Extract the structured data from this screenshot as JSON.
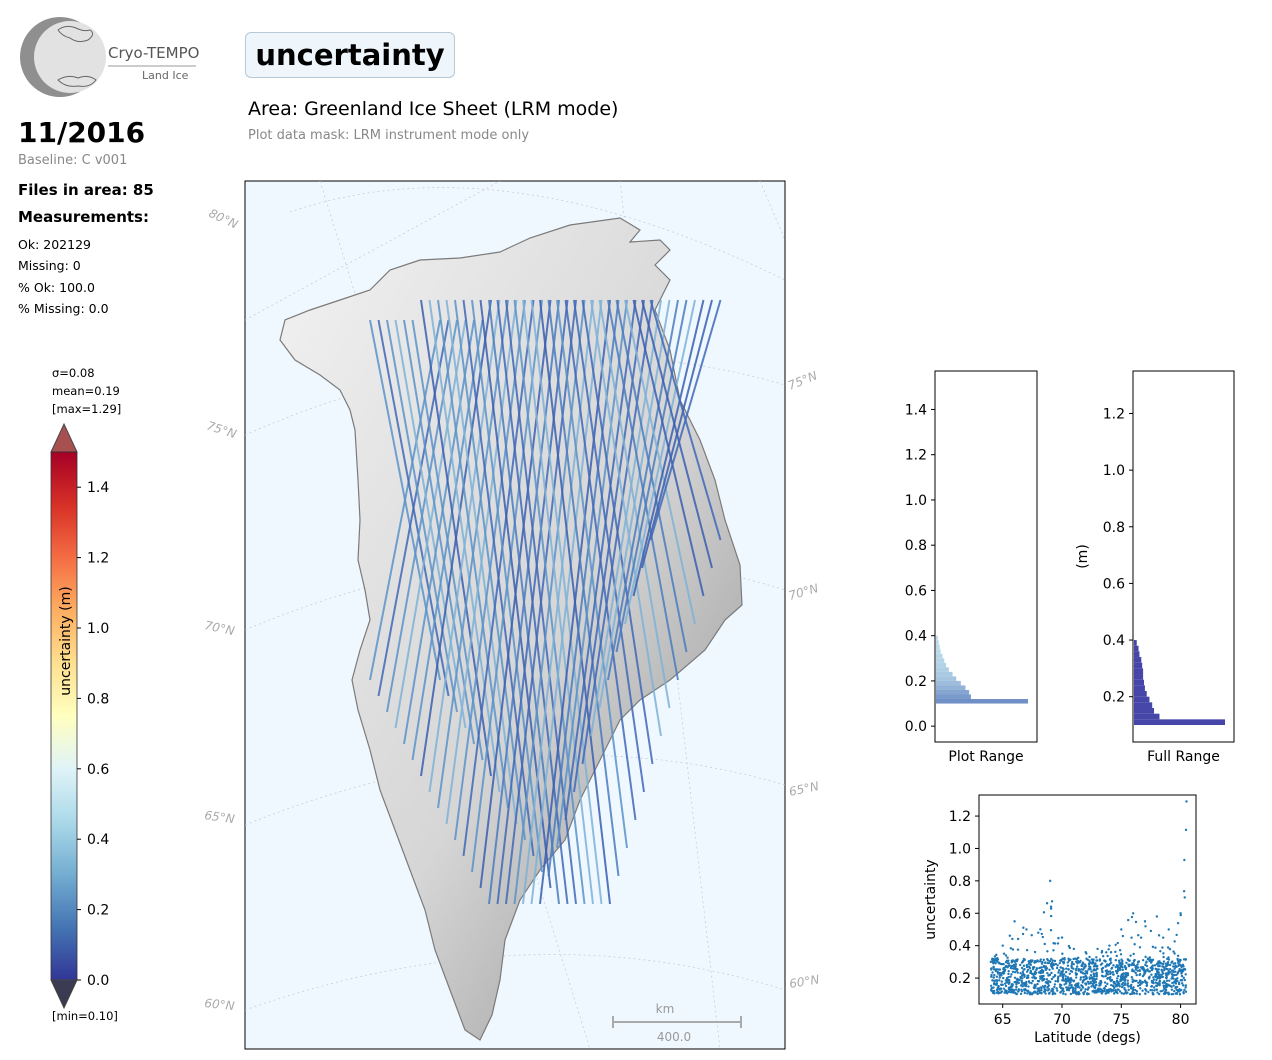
{
  "logo": {
    "line1": "Cryo-TEMPO",
    "line2": "Land Ice"
  },
  "header": {
    "title": "uncertainty",
    "area": "Area: Greenland Ice Sheet (LRM mode)",
    "mask": "Plot data mask: LRM instrument mode only"
  },
  "info": {
    "date": "11/2016",
    "baseline": "Baseline: C v001",
    "files": "Files in area: 85",
    "measurements": "Measurements:",
    "ok": "Ok: 202129",
    "missing": "Missing: 0",
    "pct_ok": "% Ok: 100.0",
    "pct_missing": "% Missing: 0.0"
  },
  "colorbar": {
    "sigma": "σ=0.08",
    "mean": "mean=0.19",
    "max": "[max=1.29]",
    "min": "[min=0.10]",
    "label": "uncertainty (m)",
    "ticks": [
      "0.0",
      "0.2",
      "0.4",
      "0.6",
      "0.8",
      "1.0",
      "1.2",
      "1.4"
    ],
    "range": [
      0.0,
      1.5
    ],
    "colors": [
      "#313695",
      "#4575b4",
      "#74add1",
      "#abd9e9",
      "#e0f3f8",
      "#ffffbf",
      "#fee090",
      "#fdae61",
      "#f46d43",
      "#d73027",
      "#a50026"
    ]
  },
  "map": {
    "lat_labels": [
      "80°N",
      "75°N",
      "70°N",
      "65°N",
      "60°N"
    ],
    "scale_unit": "km",
    "scale_value": "400.0",
    "ocean_color": "#f0f8ff"
  },
  "chart_data": [
    {
      "type": "bar",
      "orientation": "horizontal",
      "xlabel": "Plot Range",
      "yticks": [
        "0.0",
        "0.2",
        "0.4",
        "0.6",
        "0.8",
        "1.0",
        "1.2",
        "1.4"
      ],
      "ylim": [
        -0.07,
        1.57
      ],
      "bins_y": [
        0.1,
        0.12,
        0.14,
        0.16,
        0.18,
        0.2,
        0.22,
        0.24,
        0.26,
        0.28,
        0.3,
        0.32,
        0.34,
        0.36,
        0.38
      ],
      "relative_counts": [
        1.0,
        0.38,
        0.36,
        0.32,
        0.27,
        0.22,
        0.18,
        0.14,
        0.11,
        0.09,
        0.07,
        0.05,
        0.04,
        0.03,
        0.02
      ]
    },
    {
      "type": "bar",
      "orientation": "horizontal",
      "xlabel": "Full Range",
      "ylabel": "(m)",
      "yticks": [
        "0.2",
        "0.4",
        "0.6",
        "0.8",
        "1.0",
        "1.2"
      ],
      "ylim": [
        0.04,
        1.35
      ],
      "bins_y": [
        0.1,
        0.12,
        0.14,
        0.16,
        0.18,
        0.2,
        0.22,
        0.24,
        0.26,
        0.28,
        0.3,
        0.32,
        0.34,
        0.36,
        0.38
      ],
      "relative_counts": [
        1.0,
        0.28,
        0.22,
        0.2,
        0.17,
        0.14,
        0.12,
        0.11,
        0.1,
        0.1,
        0.09,
        0.08,
        0.06,
        0.05,
        0.03
      ]
    },
    {
      "type": "scatter",
      "xlabel": "Latitude (degs)",
      "ylabel": "uncertainty",
      "xticks": [
        "65",
        "70",
        "75",
        "80"
      ],
      "yticks": [
        "0.2",
        "0.4",
        "0.6",
        "0.8",
        "1.0",
        "1.2"
      ],
      "xlim": [
        63.0,
        81.3
      ],
      "ylim": [
        0.04,
        1.33
      ],
      "color": "#1f77b4",
      "envelope": [
        [
          64.0,
          0.3
        ],
        [
          65.0,
          0.4
        ],
        [
          66.0,
          0.55
        ],
        [
          67.0,
          0.5
        ],
        [
          68.0,
          0.48
        ],
        [
          69.0,
          0.8
        ],
        [
          70.0,
          0.45
        ],
        [
          71.0,
          0.38
        ],
        [
          72.0,
          0.36
        ],
        [
          73.0,
          0.38
        ],
        [
          74.0,
          0.4
        ],
        [
          75.0,
          0.5
        ],
        [
          76.0,
          0.6
        ],
        [
          77.0,
          0.55
        ],
        [
          78.0,
          0.58
        ],
        [
          79.0,
          0.5
        ],
        [
          80.0,
          0.6
        ],
        [
          80.5,
          1.29
        ]
      ]
    }
  ]
}
